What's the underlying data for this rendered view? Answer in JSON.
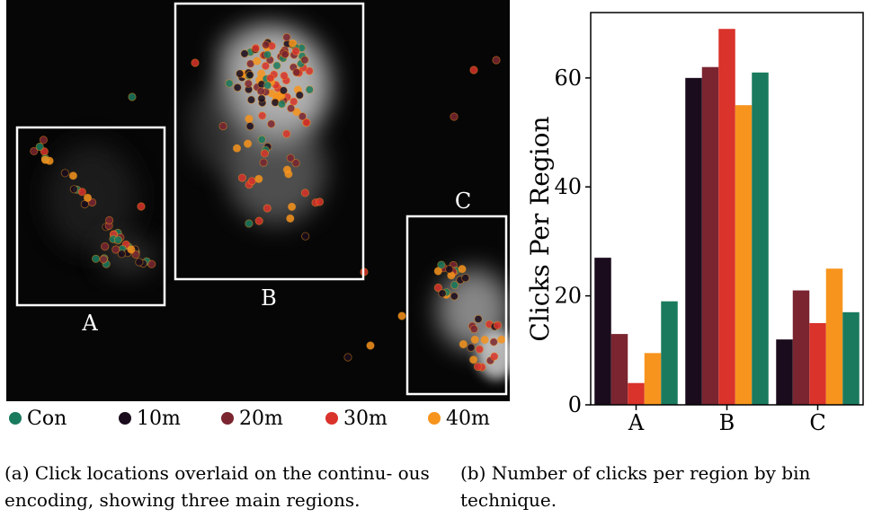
{
  "heatmap_panel": {
    "region_labels": [
      "A",
      "B",
      "C"
    ]
  },
  "legend": [
    {
      "label": "Con",
      "color": "#1a7a5e"
    },
    {
      "label": "10m",
      "color": "#1a0c1c"
    },
    {
      "label": "20m",
      "color": "#7a2530"
    },
    {
      "label": "30m",
      "color": "#d9332b"
    },
    {
      "label": "40m",
      "color": "#f7941d"
    }
  ],
  "captions": {
    "a": "(a) Click locations overlaid on the continu- ous encoding, showing three main regions.",
    "b": "(b) Number of clicks per region by bin technique."
  },
  "chart_data": [
    {
      "type": "scatter",
      "title": "",
      "xlabel": "",
      "ylabel": "",
      "region_labels": [
        "A",
        "B",
        "C"
      ],
      "series": [
        {
          "name": "Con",
          "color": "#1a7a5e"
        },
        {
          "name": "10m",
          "color": "#1a0c1c"
        },
        {
          "name": "20m",
          "color": "#7a2530"
        },
        {
          "name": "30m",
          "color": "#d9332b"
        },
        {
          "name": "40m",
          "color": "#f7941d"
        }
      ]
    },
    {
      "type": "bar",
      "title": "",
      "xlabel": "",
      "ylabel": "Clicks Per Region",
      "categories": [
        "A",
        "B",
        "C"
      ],
      "ylim": [
        0,
        72
      ],
      "yticks": [
        0,
        20,
        40,
        60
      ],
      "grid": false,
      "series": [
        {
          "name": "10m",
          "color": "#1a0c1c",
          "values": [
            27,
            60,
            12
          ]
        },
        {
          "name": "20m",
          "color": "#7a2530",
          "values": [
            13,
            62,
            21
          ]
        },
        {
          "name": "30m",
          "color": "#d9332b",
          "values": [
            4,
            69,
            15
          ]
        },
        {
          "name": "40m",
          "color": "#f7941d",
          "values": [
            9.5,
            55,
            25
          ]
        },
        {
          "name": "Con",
          "color": "#1a7a5e",
          "values": [
            19,
            61,
            17
          ]
        }
      ]
    }
  ]
}
